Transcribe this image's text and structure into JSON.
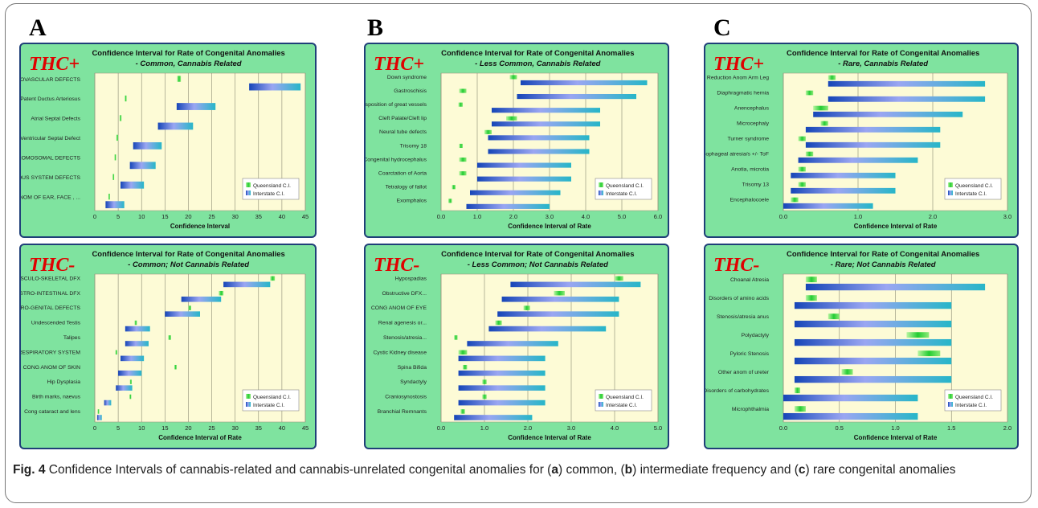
{
  "panel_letters": [
    "A",
    "B",
    "C"
  ],
  "caption": {
    "fig_label": "Fig. 4",
    "text_parts": [
      "Confidence Intervals of cannabis-related and cannabis-unrelated congenital anomalies for (",
      "a",
      ") common, (",
      "b",
      ") intermediate frequency and (",
      "c",
      ") rare congenital anomalies"
    ]
  },
  "colors": {
    "panel_bg": "#7fe39f",
    "plot_bg": "#fdfbd6",
    "panel_border": "#1f3f78",
    "thc_label": "#e00000",
    "queensland": "#33dd44",
    "interstate": "#2f7fd9"
  },
  "chart_data": [
    {
      "id": "A-top",
      "type": "bar",
      "subtype": "floating-range",
      "thc_label": "THC+",
      "title": "Confidence Interval for Rate of Congenital Anomalies",
      "subtitle": "- Common, Cannabis Related",
      "xlabel": "Confidence Interval",
      "xlim": [
        0,
        45
      ],
      "xticks": [
        0,
        5,
        10,
        15,
        20,
        25,
        30,
        35,
        40,
        45
      ],
      "grid": true,
      "legend_position": "right",
      "categories": [
        "CARDIOVASCULAR DEFECTS",
        "Patent Ductus Arteriosus",
        "Atrial Septal Defects",
        "Ventricular Septal Defect",
        "CHROMOSOMAL DEFECTS",
        "NERVOUS SYSTEM DEFECTS",
        "CONG ANOM OF EAR, FACE , ..."
      ],
      "series": [
        {
          "name": "Queensland C.I.",
          "ranges": [
            [
              17.6,
              18.4
            ],
            [
              6.4,
              6.8
            ],
            [
              5.3,
              5.7
            ],
            [
              4.6,
              5.0
            ],
            [
              4.2,
              4.5
            ],
            [
              3.8,
              4.1
            ],
            [
              2.9,
              3.2
            ]
          ]
        },
        {
          "name": "Interstate C.I.",
          "ranges": [
            [
              33.0,
              44.0
            ],
            [
              17.5,
              25.8
            ],
            [
              13.5,
              21.0
            ],
            [
              8.2,
              14.3
            ],
            [
              7.5,
              13.0
            ],
            [
              5.5,
              10.5
            ],
            [
              2.3,
              6.3
            ]
          ]
        }
      ]
    },
    {
      "id": "B-top",
      "type": "bar",
      "subtype": "floating-range",
      "thc_label": "THC+",
      "title": "Confidence Interval for Rate of Congenital Anomalies",
      "subtitle": "- Less Common, Cannabis Related",
      "xlabel": "Confidence Interval of Rate",
      "xlim": [
        0,
        6
      ],
      "xticks": [
        "0.0",
        "1.0",
        "2.0",
        "3.0",
        "4.0",
        "5.0",
        "6.0"
      ],
      "grid": true,
      "legend_position": "right",
      "categories": [
        "Down syndrome",
        "Gastroschisis",
        "Transposition of great vessels",
        "Cleft Palate/Cleft lip",
        "Neural tube defects",
        "Trisomy 18",
        "Congenital hydrocephalus",
        "Coarctation of Aorta",
        "Tetralogy of fallot",
        "Exomphalos"
      ],
      "series": [
        {
          "name": "Queensland C.I.",
          "ranges": [
            [
              1.9,
              2.1
            ],
            [
              0.5,
              0.7
            ],
            [
              0.48,
              0.6
            ],
            [
              1.8,
              2.1
            ],
            [
              1.2,
              1.4
            ],
            [
              0.5,
              0.6
            ],
            [
              0.5,
              0.7
            ],
            [
              0.5,
              0.7
            ],
            [
              0.3,
              0.4
            ],
            [
              0.2,
              0.3
            ]
          ]
        },
        {
          "name": "Interstate C.I.",
          "ranges": [
            [
              2.2,
              5.7
            ],
            [
              2.1,
              5.4
            ],
            [
              1.4,
              4.4
            ],
            [
              1.4,
              4.4
            ],
            [
              1.3,
              4.1
            ],
            [
              1.3,
              4.1
            ],
            [
              1.0,
              3.6
            ],
            [
              1.0,
              3.6
            ],
            [
              0.8,
              3.3
            ],
            [
              0.7,
              3.0
            ]
          ]
        }
      ]
    },
    {
      "id": "C-top",
      "type": "bar",
      "subtype": "floating-range",
      "thc_label": "THC+",
      "title": "Confidence Interval for Rate of Congenital Anomalies",
      "subtitle": "- Rare, Cannabis Related",
      "xlabel": "Confidence Interval of Rate",
      "xlim": [
        0,
        3
      ],
      "xticks": [
        "0.0",
        "1.0",
        "2.0",
        "3.0"
      ],
      "grid": true,
      "legend_position": "right",
      "categories": [
        "Reduction Anom Arm Leg",
        "Diaphragmatic hernia",
        "Anencephalus",
        "Microcephaly",
        "Turner syndrome",
        "Oesophageal atresia/s +/- ToF",
        "Anotia, microtia",
        "Trisomy 13",
        "Encephalocoele"
      ],
      "series": [
        {
          "name": "Queensland C.I.",
          "ranges": [
            [
              0.6,
              0.7
            ],
            [
              0.3,
              0.4
            ],
            [
              0.4,
              0.6
            ],
            [
              0.5,
              0.6
            ],
            [
              0.2,
              0.3
            ],
            [
              0.3,
              0.4
            ],
            [
              0.2,
              0.3
            ],
            [
              0.2,
              0.3
            ],
            [
              0.1,
              0.2
            ]
          ]
        },
        {
          "name": "Interstate C.I.",
          "ranges": [
            [
              0.6,
              2.7
            ],
            [
              0.6,
              2.7
            ],
            [
              0.4,
              2.4
            ],
            [
              0.3,
              2.1
            ],
            [
              0.3,
              2.1
            ],
            [
              0.2,
              1.8
            ],
            [
              0.1,
              1.5
            ],
            [
              0.1,
              1.5
            ],
            [
              0.0,
              1.2
            ]
          ]
        }
      ]
    },
    {
      "id": "A-bottom",
      "type": "bar",
      "subtype": "floating-range",
      "thc_label": "THC-",
      "title": "Confidence Interval for Rate of Congenital Anomalies",
      "subtitle": "- Common; Not Cannabis Related",
      "xlabel": "Confidence Interval of Rate",
      "xlim": [
        0,
        45
      ],
      "xticks": [
        0,
        5,
        10,
        15,
        20,
        25,
        30,
        35,
        40,
        45
      ],
      "grid": true,
      "legend_position": "right",
      "categories": [
        "MUSCULO-SKELETAL DFX",
        "GASTRO-INTESTINAL DFX",
        "URO-GENITAL DEFECTS",
        "Undescended Testis",
        "Talipes",
        "RESPIRATORY SYSTEM",
        "CONG ANOM OF SKIN",
        "Hip Dysplasia",
        "Birth marks, naevus",
        "Cong cataract and lens"
      ],
      "series": [
        {
          "name": "Queensland C.I.",
          "ranges": [
            [
              37.5,
              38.5
            ],
            [
              26.5,
              27.5
            ],
            [
              20.0,
              20.6
            ],
            [
              8.5,
              9.0
            ],
            [
              15.7,
              16.3
            ],
            [
              4.4,
              4.8
            ],
            [
              17.0,
              17.5
            ],
            [
              7.5,
              7.9
            ],
            [
              7.4,
              7.8
            ],
            [
              0.6,
              0.8
            ]
          ]
        },
        {
          "name": "Interstate C.I.",
          "ranges": [
            [
              27.5,
              37.5
            ],
            [
              18.5,
              27.0
            ],
            [
              15.0,
              22.5
            ],
            [
              6.5,
              11.8
            ],
            [
              6.5,
              11.5
            ],
            [
              5.5,
              10.5
            ],
            [
              5.0,
              10.0
            ],
            [
              4.5,
              8.0
            ],
            [
              2.0,
              3.5
            ],
            [
              0.5,
              1.5
            ]
          ]
        }
      ]
    },
    {
      "id": "B-bottom",
      "type": "bar",
      "subtype": "floating-range",
      "thc_label": "THC-",
      "title": "Confidence Interval for Rate of Congenital Anomalies",
      "subtitle": "- Less Common; Not Cannabis Related",
      "xlabel": "Confidence Interval of Rate",
      "xlim": [
        0,
        5
      ],
      "xticks": [
        "0.0",
        "1.0",
        "2.0",
        "3.0",
        "4.0",
        "5.0"
      ],
      "grid": true,
      "legend_position": "right",
      "categories": [
        "Hypospadias",
        "Obstructive DFX...",
        "CONG ANOM OF EYE",
        "Renal agenesis or...",
        "Stenosis/atresia...",
        "Cystic Kidney disease",
        "Spina Bifida",
        "Syndactyly",
        "Craniosynostosis",
        "Branchial Remnants"
      ],
      "series": [
        {
          "name": "Queensland C.I.",
          "ranges": [
            [
              4.0,
              4.2
            ],
            [
              2.6,
              2.85
            ],
            [
              1.9,
              2.05
            ],
            [
              1.25,
              1.4
            ],
            [
              0.3,
              0.38
            ],
            [
              0.4,
              0.6
            ],
            [
              0.5,
              0.6
            ],
            [
              0.95,
              1.05
            ],
            [
              0.95,
              1.05
            ],
            [
              0.45,
              0.55
            ]
          ]
        },
        {
          "name": "Interstate C.I.",
          "ranges": [
            [
              1.6,
              4.6
            ],
            [
              1.4,
              4.1
            ],
            [
              1.3,
              4.1
            ],
            [
              1.1,
              3.8
            ],
            [
              0.6,
              2.7
            ],
            [
              0.4,
              2.4
            ],
            [
              0.4,
              2.4
            ],
            [
              0.4,
              2.4
            ],
            [
              0.4,
              2.4
            ],
            [
              0.3,
              2.1
            ]
          ]
        }
      ]
    },
    {
      "id": "C-bottom",
      "type": "bar",
      "subtype": "floating-range",
      "thc_label": "THC-",
      "title": "Confidence Interval for Rate of Congenital Anomalies",
      "subtitle": "- Rare; Not Cannabis Related",
      "xlabel": "Confidence Interval of Rate",
      "xlim": [
        0,
        2
      ],
      "xticks": [
        "0.0",
        "0.5",
        "1.0",
        "1.5",
        "2.0"
      ],
      "grid": true,
      "legend_position": "right",
      "categories": [
        "Choanal Atresia",
        "Disorders of amino acids",
        "Stenosis/atresia anus",
        "Polydactyly",
        "Pyloric Stenosis",
        "Other anom of ureter",
        "Disorders of carbohydrates",
        "Microphthalmia"
      ],
      "series": [
        {
          "name": "Queensland C.I.",
          "ranges": [
            [
              0.2,
              0.3
            ],
            [
              0.2,
              0.3
            ],
            [
              0.4,
              0.5
            ],
            [
              1.1,
              1.3
            ],
            [
              1.2,
              1.4
            ],
            [
              0.52,
              0.62
            ],
            [
              0.1,
              0.15
            ],
            [
              0.1,
              0.2
            ]
          ]
        },
        {
          "name": "Interstate C.I.",
          "ranges": [
            [
              0.2,
              1.8
            ],
            [
              0.1,
              1.5
            ],
            [
              0.1,
              1.5
            ],
            [
              0.1,
              1.5
            ],
            [
              0.1,
              1.5
            ],
            [
              0.1,
              1.5
            ],
            [
              0.0,
              1.2
            ],
            [
              0.0,
              1.2
            ]
          ]
        }
      ]
    }
  ]
}
